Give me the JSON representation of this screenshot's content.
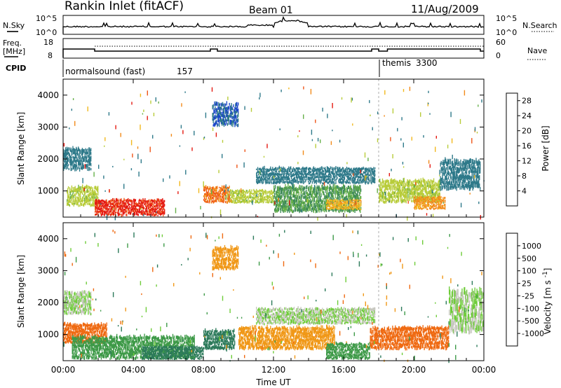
{
  "header": {
    "site": "Rankin Inlet (fitACF)",
    "beam": "Beam 01",
    "date": "11/Aug/2009"
  },
  "top_panels": {
    "nsky_label": "N.Sky",
    "nsky_ticks": [
      "10^5",
      "10^0"
    ],
    "nsearch_label": "N.Search",
    "nsearch_ticks": [
      "10^5",
      "10^0"
    ],
    "freq_label_1": "Freq.",
    "freq_label_2": "[MHz]",
    "freq_ticks": [
      "18",
      "8"
    ],
    "nave_label": "Nave",
    "nave_ticks": [
      "60",
      "0"
    ],
    "cpid_label": "CPID",
    "cpid_segments": [
      {
        "name": "normalsound (fast)",
        "id": "157"
      },
      {
        "name": "themis",
        "id": "3300"
      }
    ]
  },
  "time_axis": {
    "label": "Time UT",
    "ticks": [
      "00:00",
      "04:00",
      "08:00",
      "12:00",
      "16:00",
      "20:00",
      "00:00"
    ]
  },
  "chart_data": [
    {
      "type": "heatmap",
      "title": "",
      "xlabel": "Time UT",
      "ylabel": "Slant Range [km]",
      "xlim": [
        0,
        24
      ],
      "ylim": [
        180,
        4500
      ],
      "y_ticks": [
        "1000",
        "2000",
        "3000",
        "4000"
      ],
      "colorbar": {
        "label": "Power [dB]",
        "ticks": [
          "4",
          "8",
          "12",
          "16",
          "20",
          "24",
          "28"
        ],
        "colors": [
          "#1f2be8",
          "#1b46c8",
          "#2f7a8a",
          "#3f8a5a",
          "#66b04a",
          "#b8cc3a",
          "#f2b81e",
          "#f28a1a",
          "#ee5518",
          "#e41a12"
        ]
      },
      "bands": [
        {
          "t": [
            0.0,
            1.6
          ],
          "r": [
            1600,
            2300
          ],
          "level": 8
        },
        {
          "t": [
            0.2,
            2.0
          ],
          "r": [
            500,
            1100
          ],
          "level": 16
        },
        {
          "t": [
            1.8,
            5.8
          ],
          "r": [
            200,
            700
          ],
          "level": 28
        },
        {
          "t": [
            8.0,
            9.5
          ],
          "r": [
            600,
            1100
          ],
          "level": 24
        },
        {
          "t": [
            9.5,
            12.0
          ],
          "r": [
            600,
            1000
          ],
          "level": 16
        },
        {
          "t": [
            11.0,
            17.8
          ],
          "r": [
            1200,
            1700
          ],
          "level": 8
        },
        {
          "t": [
            12.0,
            17.0
          ],
          "r": [
            300,
            1100
          ],
          "level": 12
        },
        {
          "t": [
            15.0,
            17.0
          ],
          "r": [
            400,
            700
          ],
          "level": 20
        },
        {
          "t": [
            18.0,
            21.5
          ],
          "r": [
            600,
            1300
          ],
          "level": 16
        },
        {
          "t": [
            20.0,
            21.8
          ],
          "r": [
            400,
            800
          ],
          "level": 22
        },
        {
          "t": [
            21.5,
            23.8
          ],
          "r": [
            1000,
            1900
          ],
          "level": 8
        },
        {
          "t": [
            8.5,
            10.0
          ],
          "r": [
            3000,
            3700
          ],
          "level": 6
        }
      ]
    },
    {
      "type": "heatmap",
      "title": "",
      "xlabel": "Time UT",
      "ylabel": "Slant Range [km]",
      "xlim": [
        0,
        24
      ],
      "ylim": [
        180,
        4500
      ],
      "y_ticks": [
        "1000",
        "2000",
        "3000",
        "4000"
      ],
      "colorbar": {
        "label": "Velocity [m s^-1]",
        "ticks": [
          "1000",
          "500",
          "100",
          "25",
          "-25",
          "-100",
          "-500",
          "-1000"
        ],
        "colors": [
          "#1b3ad0",
          "#2c7a5a",
          "#3e9a48",
          "#6fcc3a",
          "#c8c8c0",
          "#f0b828",
          "#f09818",
          "#ef6a12",
          "#e41a12"
        ]
      },
      "bands": [
        {
          "t": [
            0.0,
            1.6
          ],
          "r": [
            1600,
            2300
          ],
          "level": 25
        },
        {
          "t": [
            0.0,
            2.5
          ],
          "r": [
            700,
            1300
          ],
          "level": -500
        },
        {
          "t": [
            0.5,
            7.5
          ],
          "r": [
            200,
            900
          ],
          "level": 100
        },
        {
          "t": [
            4.5,
            8.0
          ],
          "r": [
            200,
            600
          ],
          "level": 500
        },
        {
          "t": [
            8.0,
            9.8
          ],
          "r": [
            500,
            1100
          ],
          "level": 500
        },
        {
          "t": [
            8.5,
            10.0
          ],
          "r": [
            3000,
            3700
          ],
          "level": -100
        },
        {
          "t": [
            10.0,
            15.5
          ],
          "r": [
            500,
            1200
          ],
          "level": -100
        },
        {
          "t": [
            11.0,
            17.8
          ],
          "r": [
            1300,
            1800
          ],
          "level": 25
        },
        {
          "t": [
            15.0,
            17.5
          ],
          "r": [
            200,
            700
          ],
          "level": 100
        },
        {
          "t": [
            17.5,
            22.0
          ],
          "r": [
            500,
            1200
          ],
          "level": -500
        },
        {
          "t": [
            22.0,
            24.0
          ],
          "r": [
            1000,
            2300
          ],
          "level": 25
        }
      ]
    }
  ]
}
